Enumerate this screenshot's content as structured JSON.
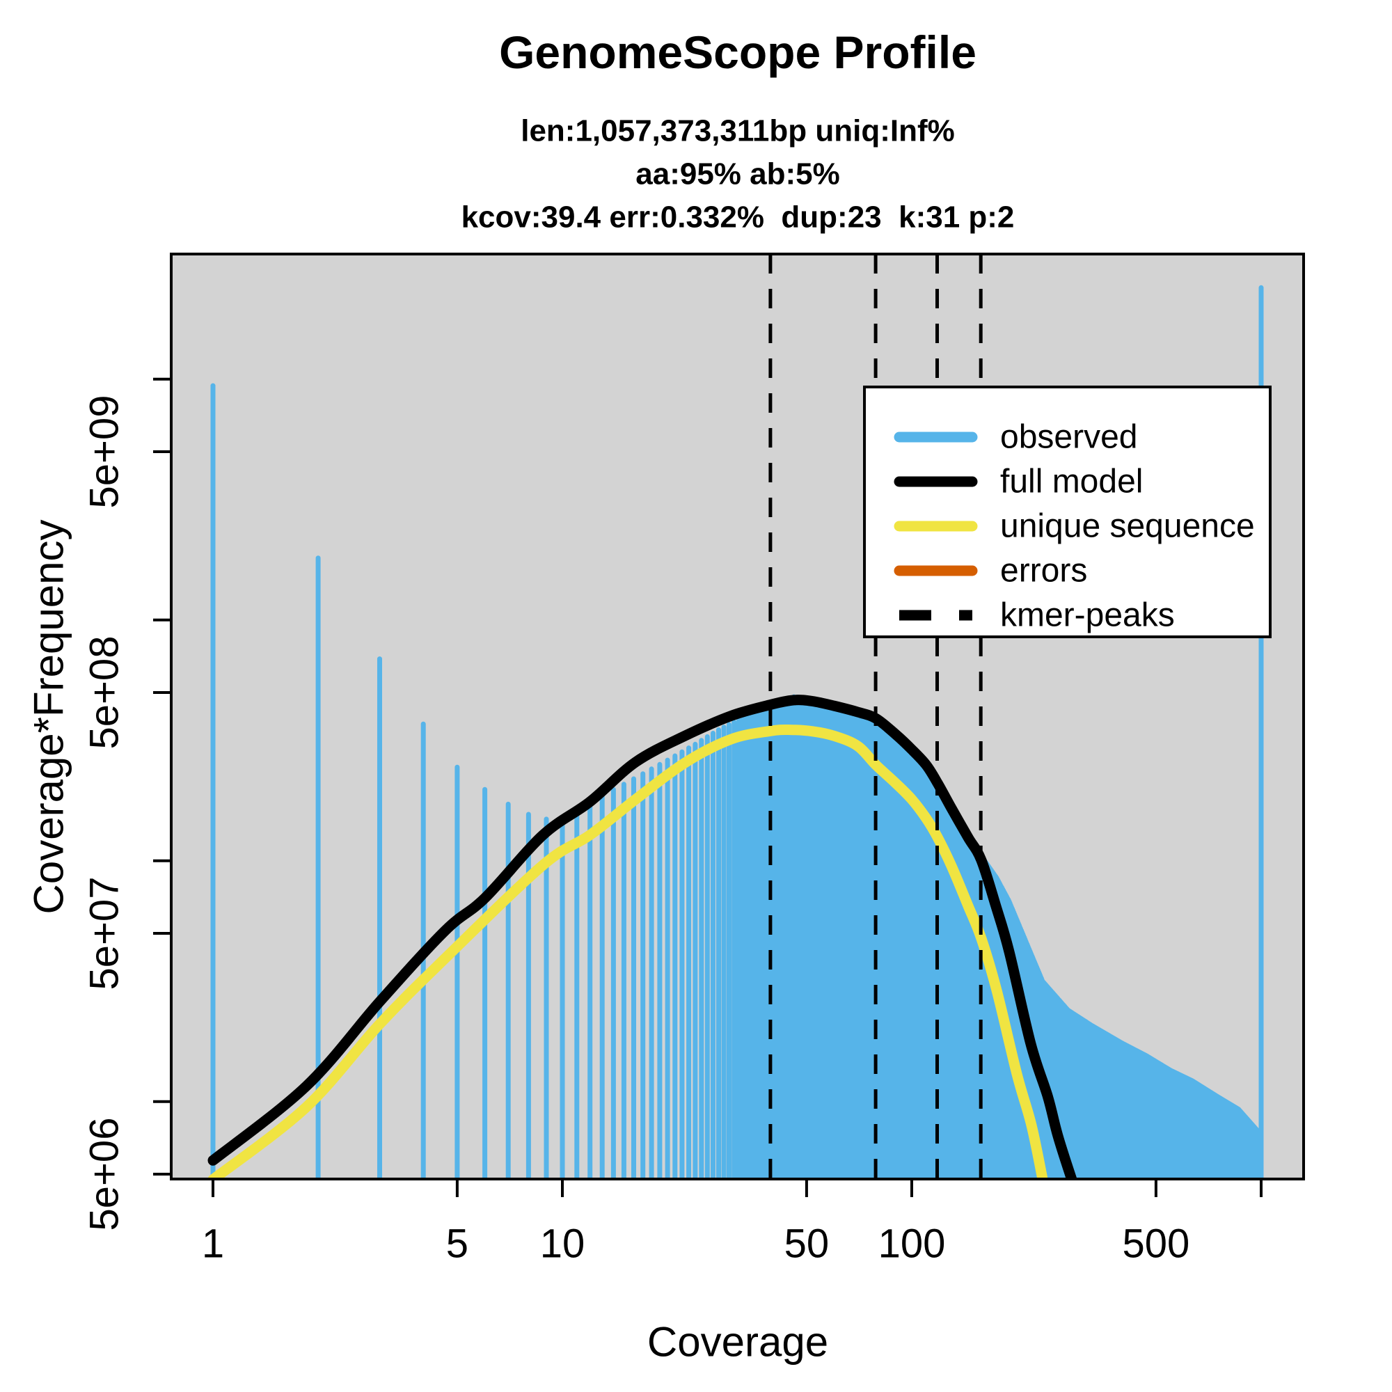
{
  "chart_data": {
    "type": "bar+line",
    "title": "GenomeScope Profile",
    "subtitles": [
      "len:1,057,373,311bp uniq:Inf%",
      "aa:95% ab:5%",
      "kcov:39.4 err:0.332%  dup:23  k:31 p:2"
    ],
    "xlabel": "Coverage",
    "ylabel": "Coverage*Frequency",
    "x_scale": "log10",
    "y_scale": "log10",
    "xlim": [
      0.76,
      1320
    ],
    "ylim": [
      4780000,
      33000000000
    ],
    "grid": false,
    "plot_bg_color": "#D3D3D3",
    "x_axis": {
      "ticks": [
        {
          "value": 1,
          "label": "1"
        },
        {
          "value": 5,
          "label": "5"
        },
        {
          "value": 10,
          "label": "10"
        },
        {
          "value": 50,
          "label": "50"
        },
        {
          "value": 100,
          "label": "100"
        },
        {
          "value": 500,
          "label": "500"
        },
        {
          "value": 1000,
          "label": ""
        }
      ]
    },
    "y_axis": {
      "ticks": [
        {
          "value": 5000000.0,
          "label": "5e+06"
        },
        {
          "value": 10000000.0,
          "label": ""
        },
        {
          "value": 50000000.0,
          "label": "5e+07"
        },
        {
          "value": 100000000.0,
          "label": ""
        },
        {
          "value": 500000000.0,
          "label": "5e+08"
        },
        {
          "value": 1000000000.0,
          "label": ""
        },
        {
          "value": 5000000000.0,
          "label": "5e+09"
        },
        {
          "value": 10000000000.0,
          "label": ""
        }
      ]
    },
    "kmer_peaks": [
      39.4,
      78.8,
      118.2,
      157.6
    ],
    "series": {
      "observed": {
        "name": "observed",
        "color": "#56B4E9",
        "style": "vertical-bars",
        "points": [
          [
            1,
            9400000000.0
          ],
          [
            2,
            1810000000.0
          ],
          [
            3,
            690000000.0
          ],
          [
            4,
            370000000.0
          ],
          [
            5,
            245000000.0
          ],
          [
            6,
            198000000.0
          ],
          [
            7,
            172000000.0
          ],
          [
            8,
            156000000.0
          ],
          [
            9,
            149000000.0
          ],
          [
            10,
            149000000.0
          ],
          [
            11,
            158000000.0
          ],
          [
            12,
            168000000.0
          ],
          [
            13,
            188000000.0
          ],
          [
            14,
            198000000.0
          ],
          [
            15,
            208000000.0
          ],
          [
            17,
            230000000.0
          ],
          [
            20,
            262000000.0
          ],
          [
            24,
            305000000.0
          ],
          [
            28,
            350000000.0
          ],
          [
            33,
            395000000.0
          ],
          [
            38,
            430000000.0
          ],
          [
            43,
            465000000.0
          ],
          [
            46,
            480000000.0
          ],
          [
            50,
            475000000.0
          ],
          [
            55,
            465000000.0
          ],
          [
            60,
            450000000.0
          ],
          [
            70,
            420000000.0
          ],
          [
            79,
            385000000.0
          ],
          [
            90,
            330000000.0
          ],
          [
            100,
            285000000.0
          ],
          [
            110,
            245000000.0
          ],
          [
            119,
            210000000.0
          ],
          [
            130,
            170000000.0
          ],
          [
            145,
            130000000.0
          ],
          [
            158,
            105000000.0
          ],
          [
            175,
            85000000.0
          ],
          [
            190,
            68000000.0
          ],
          [
            210,
            48000000.0
          ],
          [
            237,
            31600000.0
          ],
          [
            280,
            24000000.0
          ],
          [
            326,
            20800000.0
          ],
          [
            400,
            17500000.0
          ],
          [
            470,
            15500000.0
          ],
          [
            550,
            13500000.0
          ],
          [
            636,
            12200000.0
          ],
          [
            750,
            10500000.0
          ],
          [
            862,
            9300000.0
          ],
          [
            999,
            7300000.0
          ]
        ],
        "max_bin_spike": [
          1000,
          24000000000.0
        ]
      },
      "full_model": {
        "name": "full model",
        "color": "#000000",
        "style": "line",
        "points": [
          [
            1,
            5700000.0
          ],
          [
            1.85,
            11600000.0
          ],
          [
            3,
            26000000.0
          ],
          [
            4.63,
            51500000.0
          ],
          [
            6,
            70000000.0
          ],
          [
            8.8,
            128000000.0
          ],
          [
            12,
            176000000.0
          ],
          [
            16.2,
            257000000.0
          ],
          [
            22.4,
            330000000.0
          ],
          [
            30.4,
            400000000.0
          ],
          [
            39.4,
            445000000.0
          ],
          [
            46,
            465000000.0
          ],
          [
            52,
            460000000.0
          ],
          [
            60,
            440000000.0
          ],
          [
            70,
            415000000.0
          ],
          [
            79,
            390000000.0
          ],
          [
            90,
            335000000.0
          ],
          [
            100,
            290000000.0
          ],
          [
            110,
            250000000.0
          ],
          [
            118.6,
            210000000.0
          ],
          [
            130,
            165000000.0
          ],
          [
            145,
            125000000.0
          ],
          [
            158,
            101000000.0
          ],
          [
            174,
            65000000.0
          ],
          [
            190,
            42000000.0
          ],
          [
            219,
            17400000.0
          ],
          [
            245,
            10500000.0
          ],
          [
            262,
            7200000.0
          ],
          [
            287,
            4750000.0
          ]
        ]
      },
      "unique_sequence": {
        "name": "unique sequence",
        "color": "#F0E442",
        "style": "line",
        "points": [
          [
            1,
            4750000.0
          ],
          [
            1.85,
            9500000.0
          ],
          [
            3,
            21000000.0
          ],
          [
            4.63,
            39500000.0
          ],
          [
            8.8,
            96000000.0
          ],
          [
            12,
            128000000.0
          ],
          [
            16.2,
            180000000.0
          ],
          [
            22.4,
            255000000.0
          ],
          [
            30.4,
            320000000.0
          ],
          [
            39.4,
            346000000.0
          ],
          [
            45,
            350000000.0
          ],
          [
            52,
            345000000.0
          ],
          [
            60,
            330000000.0
          ],
          [
            70,
            300000000.0
          ],
          [
            79,
            250000000.0
          ],
          [
            90,
            210000000.0
          ],
          [
            100,
            180000000.0
          ],
          [
            110,
            150000000.0
          ],
          [
            118.6,
            125000000.0
          ],
          [
            130,
            95000000.0
          ],
          [
            145,
            65000000.0
          ],
          [
            158,
            47800000.0
          ],
          [
            175,
            29000000.0
          ],
          [
            200,
            13000000.0
          ],
          [
            220,
            8000000.0
          ],
          [
            237,
            4750000.0
          ]
        ]
      },
      "errors": {
        "name": "errors",
        "color": "#D55E00",
        "style": "line",
        "points": []
      }
    },
    "legend": [
      {
        "label": "observed",
        "color": "#56B4E9",
        "dashed": false
      },
      {
        "label": "full model",
        "color": "#000000",
        "dashed": false
      },
      {
        "label": "unique sequence",
        "color": "#F0E442",
        "dashed": false
      },
      {
        "label": "errors",
        "color": "#D55E00",
        "dashed": false
      },
      {
        "label": "kmer-peaks",
        "color": "#000000",
        "dashed": true
      }
    ],
    "legend_position": "upper-right"
  }
}
